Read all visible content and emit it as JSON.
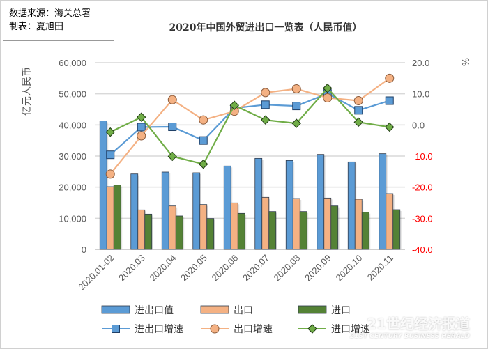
{
  "source_box": {
    "line1": "数据来源：海关总署",
    "line2": "制表：夏旭田"
  },
  "watermark": {
    "cn": "21世纪经济报道",
    "en": "21ST CENTURY BUSINESS HERALD"
  },
  "chart_data": {
    "type": "bar+line",
    "title": "2020年中国外贸进出口一览表（人民币值）",
    "ylabel_left": "亿元人民币",
    "ylabel_right": "%",
    "ylim_left": [
      0,
      60000
    ],
    "ylim_right": [
      -40,
      20
    ],
    "yticks_left": [
      "0",
      "10,000",
      "20,000",
      "30,000",
      "40,000",
      "50,000",
      "60,000"
    ],
    "yticks_right": [
      "-40.0",
      "-30.0",
      "-20.0",
      "-10.0",
      "0.0",
      "10.0",
      "20.0"
    ],
    "grid": true,
    "legend_position": "bottom",
    "categories": [
      "2020.01-02",
      "2020.03",
      "2020.04",
      "2020.05",
      "2020.06",
      "2020.07",
      "2020.08",
      "2020.09",
      "2020.10",
      "2020.11"
    ],
    "bar_series": [
      {
        "name": "进出口值",
        "color": "#5b9bd5",
        "values": [
          41300,
          24250,
          24850,
          24630,
          26800,
          29250,
          28580,
          30520,
          28130,
          30750
        ]
      },
      {
        "name": "出口",
        "color": "#f4b183",
        "values": [
          20150,
          12690,
          13950,
          14400,
          14930,
          16720,
          16340,
          16490,
          16120,
          17910
        ]
      },
      {
        "name": "进口",
        "color": "#548235",
        "values": [
          20670,
          11340,
          10750,
          9930,
          11570,
          12160,
          12160,
          13950,
          11940,
          12760
        ]
      }
    ],
    "line_series": [
      {
        "name": "进出口增速",
        "color": "#5b9bd5",
        "marker": "square",
        "values": [
          -9.6,
          -0.7,
          -0.6,
          -5.0,
          5.4,
          6.5,
          6.1,
          10.1,
          4.7,
          7.8
        ]
      },
      {
        "name": "出口增速",
        "color": "#f4b183",
        "marker": "circle",
        "values": [
          -15.8,
          -3.5,
          8.1,
          1.6,
          4.4,
          10.4,
          11.6,
          8.7,
          7.8,
          15.0
        ]
      },
      {
        "name": "进口增速",
        "color": "#70ad47",
        "marker": "diamond",
        "values": [
          -2.3,
          2.5,
          -10.1,
          -12.6,
          6.3,
          1.6,
          0.5,
          11.8,
          0.9,
          -0.7
        ]
      }
    ],
    "negative_tick_color": "#ff0000"
  }
}
